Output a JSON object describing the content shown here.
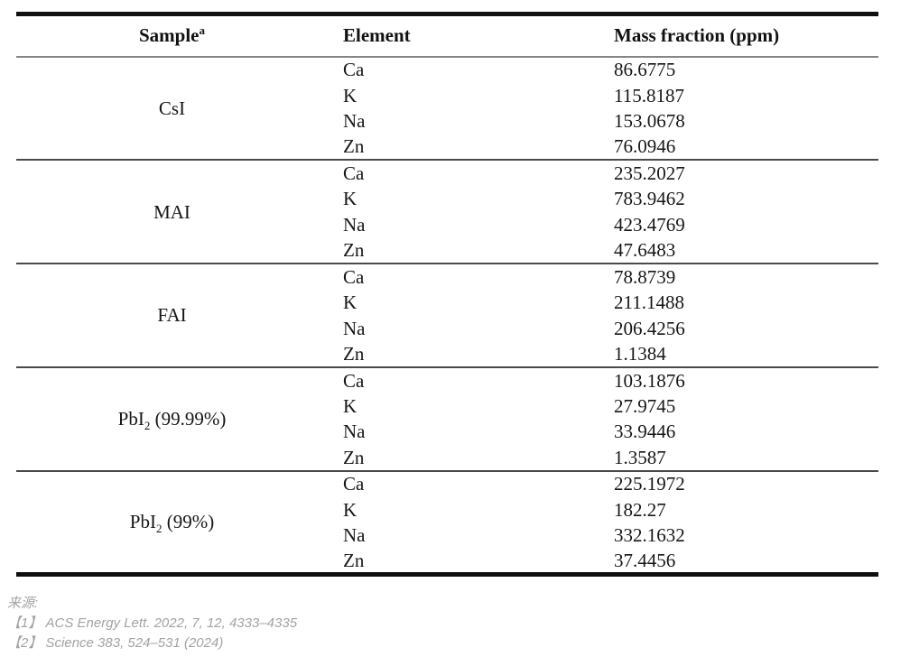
{
  "table": {
    "columns": [
      {
        "label": "Sample",
        "superscript": "a"
      },
      {
        "label": "Element",
        "superscript": ""
      },
      {
        "label": "Mass fraction (ppm)",
        "superscript": ""
      }
    ],
    "groups": [
      {
        "sample": {
          "base": "CsI",
          "sub": "",
          "note": ""
        },
        "rows": [
          {
            "element": "Ca",
            "mass_fraction_ppm": "86.6775"
          },
          {
            "element": "K",
            "mass_fraction_ppm": "115.8187"
          },
          {
            "element": "Na",
            "mass_fraction_ppm": "153.0678"
          },
          {
            "element": "Zn",
            "mass_fraction_ppm": "76.0946"
          }
        ]
      },
      {
        "sample": {
          "base": "MAI",
          "sub": "",
          "note": ""
        },
        "rows": [
          {
            "element": "Ca",
            "mass_fraction_ppm": "235.2027"
          },
          {
            "element": "K",
            "mass_fraction_ppm": "783.9462"
          },
          {
            "element": "Na",
            "mass_fraction_ppm": "423.4769"
          },
          {
            "element": "Zn",
            "mass_fraction_ppm": "47.6483"
          }
        ]
      },
      {
        "sample": {
          "base": "FAI",
          "sub": "",
          "note": ""
        },
        "rows": [
          {
            "element": "Ca",
            "mass_fraction_ppm": "78.8739"
          },
          {
            "element": "K",
            "mass_fraction_ppm": "211.1488"
          },
          {
            "element": "Na",
            "mass_fraction_ppm": "206.4256"
          },
          {
            "element": "Zn",
            "mass_fraction_ppm": "1.1384"
          }
        ]
      },
      {
        "sample": {
          "base": "PbI",
          "sub": "2",
          "note": " (99.99%)"
        },
        "rows": [
          {
            "element": "Ca",
            "mass_fraction_ppm": "103.1876"
          },
          {
            "element": "K",
            "mass_fraction_ppm": "27.9745"
          },
          {
            "element": "Na",
            "mass_fraction_ppm": "33.9446"
          },
          {
            "element": "Zn",
            "mass_fraction_ppm": "1.3587"
          }
        ]
      },
      {
        "sample": {
          "base": "PbI",
          "sub": "2",
          "note": " (99%)"
        },
        "rows": [
          {
            "element": "Ca",
            "mass_fraction_ppm": "225.1972"
          },
          {
            "element": "K",
            "mass_fraction_ppm": "182.27"
          },
          {
            "element": "Na",
            "mass_fraction_ppm": "332.1632"
          },
          {
            "element": "Zn",
            "mass_fraction_ppm": "37.4456"
          }
        ]
      }
    ]
  },
  "footer": {
    "source_label": "来源:",
    "references": [
      "【1】 ACS Energy Lett. 2022, 7, 12, 4333–4335",
      "【2】 Science 383, 524–531 (2024)"
    ]
  }
}
